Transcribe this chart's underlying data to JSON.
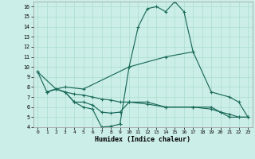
{
  "xlabel": "Humidex (Indice chaleur)",
  "bg_color": "#cceee8",
  "grid_color": "#aaddcc",
  "line_color": "#1a6b5a",
  "xlim": [
    -0.5,
    23.5
  ],
  "ylim": [
    4,
    16.5
  ],
  "xticks": [
    0,
    1,
    2,
    3,
    4,
    5,
    6,
    7,
    8,
    9,
    10,
    11,
    12,
    13,
    14,
    15,
    16,
    17,
    18,
    19,
    20,
    21,
    22,
    23
  ],
  "yticks": [
    4,
    5,
    6,
    7,
    8,
    9,
    10,
    11,
    12,
    13,
    14,
    15,
    16
  ],
  "line1_x": [
    0,
    1,
    2,
    3,
    4,
    5,
    6,
    7,
    8,
    9,
    10,
    11,
    12,
    13,
    14,
    15,
    16,
    17
  ],
  "line1_y": [
    9.5,
    7.5,
    7.8,
    7.5,
    6.5,
    6.0,
    5.8,
    4.0,
    4.1,
    4.3,
    10.0,
    14.0,
    15.8,
    16.0,
    15.5,
    16.5,
    15.5,
    11.5
  ],
  "line2_x": [
    0,
    2,
    3,
    5,
    10,
    14,
    17,
    19,
    21,
    22,
    23
  ],
  "line2_y": [
    9.5,
    7.8,
    8.0,
    7.8,
    10.0,
    11.0,
    11.5,
    7.5,
    7.0,
    6.5,
    5.0
  ],
  "line3_x": [
    1,
    2,
    3,
    4,
    5,
    6,
    7,
    8,
    9,
    10,
    12,
    14,
    17,
    19,
    20,
    21,
    22,
    23
  ],
  "line3_y": [
    7.5,
    7.8,
    7.5,
    7.3,
    7.2,
    7.0,
    6.8,
    6.7,
    6.5,
    6.5,
    6.3,
    6.0,
    6.0,
    5.8,
    5.5,
    5.3,
    5.0,
    5.0
  ],
  "line4_x": [
    1,
    2,
    3,
    4,
    5,
    6,
    7,
    8,
    9,
    10,
    12,
    14,
    17,
    19,
    20,
    21,
    22,
    23
  ],
  "line4_y": [
    7.5,
    7.8,
    7.5,
    6.5,
    6.5,
    6.2,
    5.5,
    5.4,
    5.5,
    6.5,
    6.5,
    6.0,
    6.0,
    6.0,
    5.5,
    5.0,
    5.0,
    5.0
  ]
}
